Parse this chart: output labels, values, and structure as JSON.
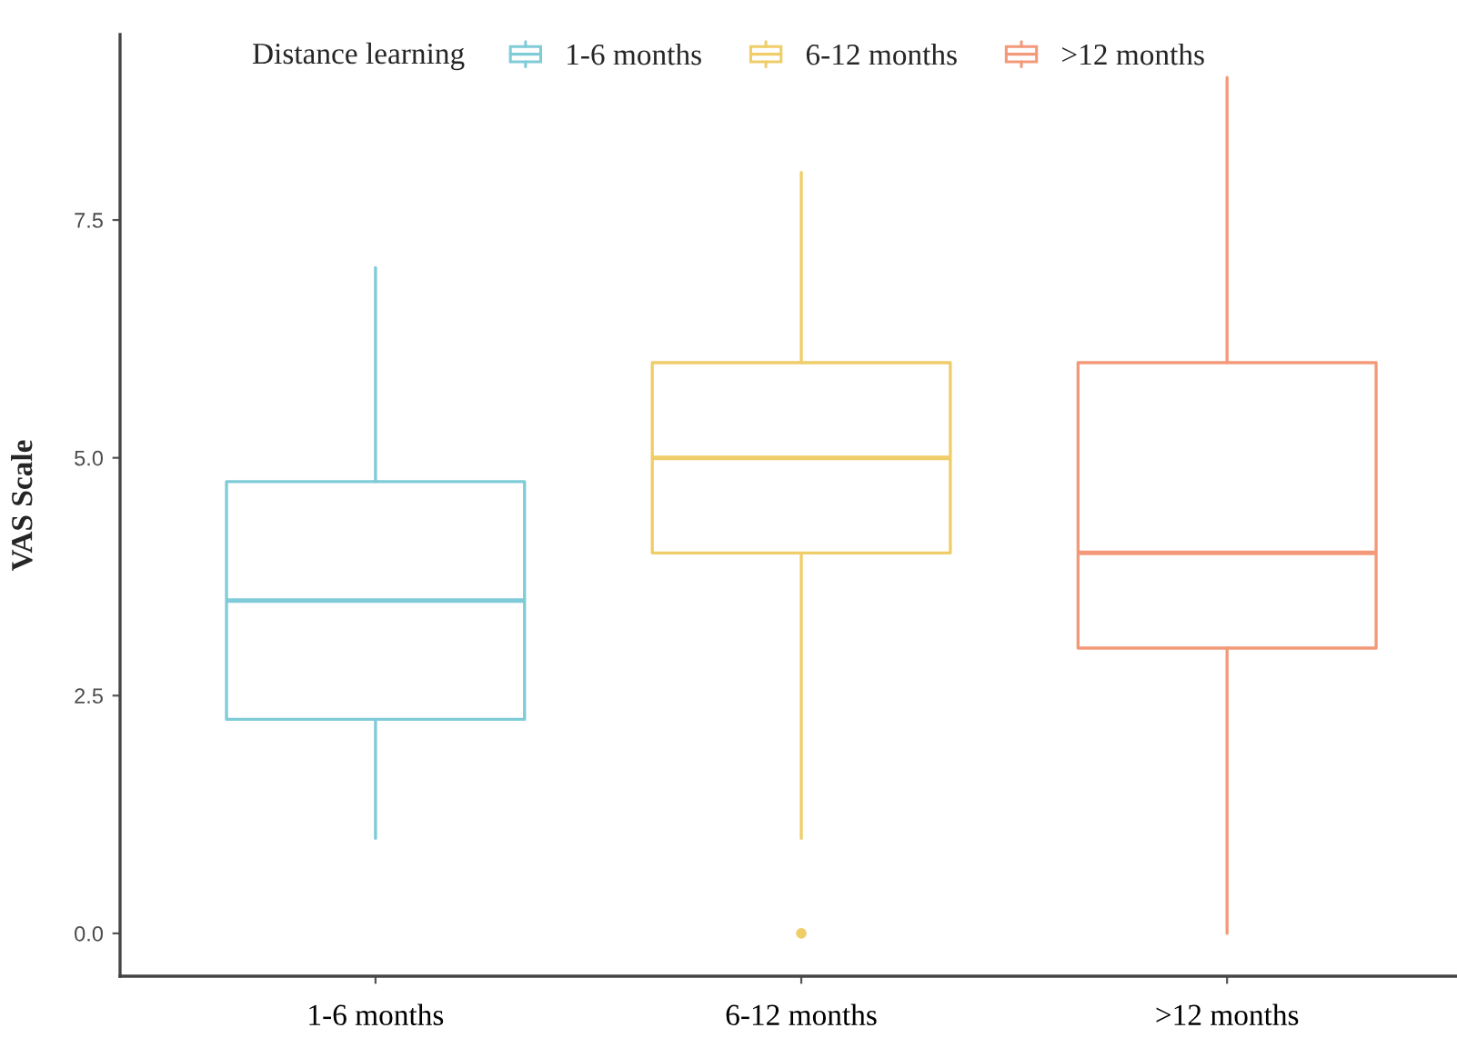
{
  "chart_data": {
    "type": "box",
    "categories": [
      "1-6 months",
      "6-12 months",
      ">12 months"
    ],
    "ylabel": "VAS Scale",
    "legend_title": "Distance learning",
    "legend": "top",
    "grid": false,
    "ylim": [
      -0.45,
      9.45
    ],
    "yticks": [
      {
        "value": 0,
        "label": "0.0"
      },
      {
        "value": 2.5,
        "label": "2.5"
      },
      {
        "value": 5,
        "label": "5.0"
      },
      {
        "value": 7.5,
        "label": "7.5"
      }
    ],
    "series": [
      {
        "name": "1-6 months",
        "color": "#7fcbd8",
        "boxes": [
          {
            "low": 1,
            "q1": 2.25,
            "median": 3.5,
            "q3": 4.75,
            "high": 7
          },
          null,
          null
        ]
      },
      {
        "name": "6-12 months",
        "color": "#efcd68",
        "boxes": [
          null,
          {
            "low": 1,
            "q1": 4,
            "median": 5,
            "q3": 6,
            "high": 8,
            "outliers": [
              0
            ]
          },
          null
        ]
      },
      {
        "name": ">12 months",
        "color": "#f3997a",
        "boxes": [
          null,
          null,
          {
            "low": 0,
            "q1": 3,
            "median": 4,
            "q3": 6,
            "high": 9
          }
        ]
      }
    ]
  }
}
